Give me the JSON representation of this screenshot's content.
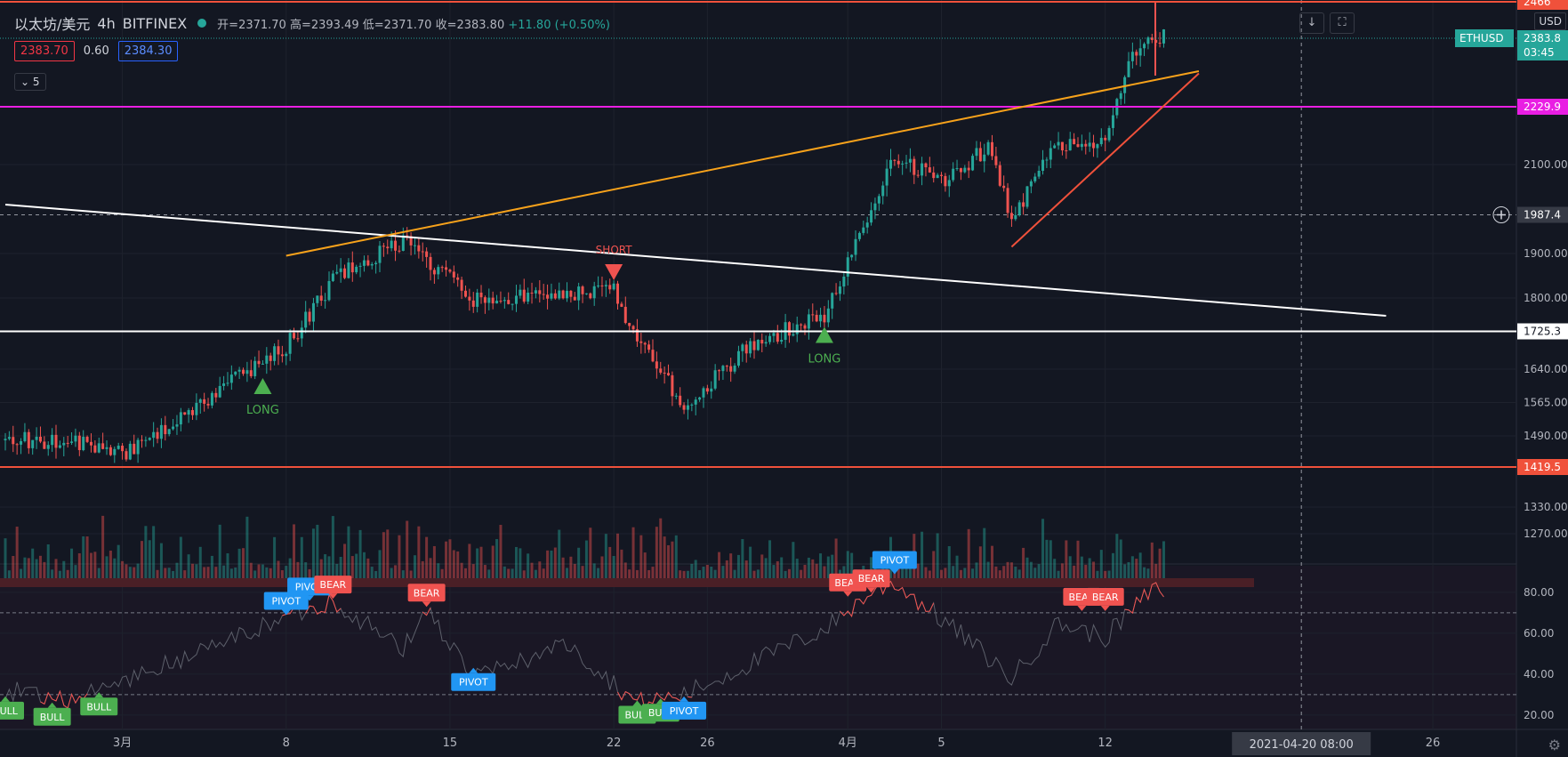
{
  "header": {
    "symbol": "以太坊/美元",
    "interval": "4h",
    "exchange": "BITFINEX",
    "open": "开=2371.70",
    "high": "高=2393.49",
    "low": "低=2371.70",
    "close": "收=2383.80",
    "change": "+11.80 (+0.50%)"
  },
  "trade": {
    "sell": "2383.70",
    "spread": "0.60",
    "buy": "2384.30"
  },
  "indicator_toggle": "5",
  "toolbar": {
    "download_icon": "arrow-down-icon",
    "fullscreen_icon": "fullscreen-icon",
    "currency": "USD"
  },
  "colors": {
    "bg": "#131722",
    "up": "#26a69a",
    "down": "#ef5350",
    "orange": "#f7a21b",
    "magenta": "#e91ee3",
    "red_line": "#f0513b",
    "bull": "#4caf50",
    "bear": "#f05350",
    "pivot": "#2196f3"
  },
  "chart_data": [
    {
      "type": "candlestick",
      "title": "",
      "x_ticks": [
        "3月",
        "8",
        "15",
        "22",
        "26",
        "4月",
        "5",
        "12",
        "26"
      ],
      "crosshair_time": "2021-04-20   08:00",
      "y_ticks": [
        "2100.00",
        "1900.00",
        "1800.00",
        "1640.00",
        "1565.00",
        "1490.00",
        "1330.00",
        "1270.00"
      ],
      "ylim": [
        1220,
        2470
      ],
      "price_labels": [
        {
          "text": "2466",
          "price": 2466,
          "color": "#f0513b"
        },
        {
          "text": "2383.8",
          "price": 2384,
          "color": "#26a69a"
        },
        {
          "text": "03:45",
          "price": 2352,
          "color": "#26a69a"
        },
        {
          "text": "2229.9",
          "price": 2230,
          "color": "#e91ee3"
        },
        {
          "text": "1987.4",
          "price": 1987,
          "color": "#363a45"
        },
        {
          "text": "1725.3",
          "price": 1725,
          "color": "#ffffff"
        },
        {
          "text": "1419.5",
          "price": 1420,
          "color": "#f0513b"
        }
      ],
      "symbol_tag": "ETHUSD",
      "key_points": [
        {
          "t": "2021-02-27",
          "price": 1480
        },
        {
          "t": "2021-03-01",
          "price": 1450
        },
        {
          "t": "2021-03-08",
          "price": 1690
        },
        {
          "t": "2021-03-10",
          "price": 1840
        },
        {
          "t": "2021-03-13",
          "price": 1930
        },
        {
          "t": "2021-03-16",
          "price": 1800
        },
        {
          "t": "2021-03-22",
          "price": 1820
        },
        {
          "t": "2021-03-23",
          "price": 1700
        },
        {
          "t": "2021-03-25",
          "price": 1560
        },
        {
          "t": "2021-03-28",
          "price": 1700
        },
        {
          "t": "2021-03-31",
          "price": 1760
        },
        {
          "t": "2021-04-01",
          "price": 1880
        },
        {
          "t": "2021-04-03",
          "price": 2120
        },
        {
          "t": "2021-04-05",
          "price": 2060
        },
        {
          "t": "2021-04-07",
          "price": 2140
        },
        {
          "t": "2021-04-08",
          "price": 1980
        },
        {
          "t": "2021-04-10",
          "price": 2150
        },
        {
          "t": "2021-04-12",
          "price": 2140
        },
        {
          "t": "2021-04-13",
          "price": 2330
        },
        {
          "t": "2021-04-14",
          "price": 2384
        }
      ],
      "horizontal_lines": [
        {
          "price": 2466,
          "color": "#f0513b"
        },
        {
          "price": 2230,
          "color": "#e91ee3"
        },
        {
          "price": 1725,
          "color": "#ffffff"
        },
        {
          "price": 1420,
          "color": "#f0513b"
        }
      ],
      "trend_lines": [
        {
          "from": [
            "2021-02-24",
            2010
          ],
          "to": [
            "2021-04-24",
            1760
          ],
          "color": "#ffffff"
        },
        {
          "from": [
            "2021-03-08",
            1895
          ],
          "to": [
            "2021-04-16",
            2310
          ],
          "color": "#f7a21b"
        },
        {
          "from": [
            "2021-04-08",
            1915
          ],
          "to": [
            "2021-04-16",
            2305
          ],
          "color": "#f0513b"
        }
      ],
      "signals": [
        {
          "label": "LONG",
          "t": "2021-03-07",
          "price": 1600,
          "dir": "up"
        },
        {
          "label": "SHORT",
          "t": "2021-03-22",
          "price": 1860,
          "dir": "down"
        },
        {
          "label": "LONG",
          "t": "2021-03-31",
          "price": 1715,
          "dir": "up"
        }
      ]
    },
    {
      "type": "line",
      "title": "",
      "y_ticks": [
        "80.00",
        "60.00",
        "40.00",
        "20.00"
      ],
      "ylim": [
        13,
        93
      ],
      "levels": [
        70,
        30
      ],
      "markers": [
        {
          "label": "BULL",
          "t": "2021-02-24",
          "value": 30
        },
        {
          "label": "BULL",
          "t": "2021-02-26",
          "value": 27
        },
        {
          "label": "BULL",
          "t": "2021-02-28",
          "value": 32
        },
        {
          "label": "PIVOT",
          "t": "2021-03-08",
          "value": 68
        },
        {
          "label": "PIVOT",
          "t": "2021-03-09",
          "value": 75
        },
        {
          "label": "BEAR",
          "t": "2021-03-10",
          "value": 76
        },
        {
          "label": "BEAR",
          "t": "2021-03-14",
          "value": 72
        },
        {
          "label": "PIVOT",
          "t": "2021-03-16",
          "value": 44
        },
        {
          "label": "BULL",
          "t": "2021-03-23",
          "value": 28
        },
        {
          "label": "BULL",
          "t": "2021-03-24",
          "value": 29
        },
        {
          "label": "PIVOT",
          "t": "2021-03-25",
          "value": 30
        },
        {
          "label": "BEAR",
          "t": "2021-04-01",
          "value": 77
        },
        {
          "label": "BEAR",
          "t": "2021-04-02",
          "value": 79
        },
        {
          "label": "PIVOT",
          "t": "2021-04-03",
          "value": 88
        },
        {
          "label": "BEAR",
          "t": "2021-04-11",
          "value": 70
        },
        {
          "label": "BEAR",
          "t": "2021-04-12",
          "value": 70
        }
      ],
      "key_points": [
        {
          "t": "2021-02-24",
          "value": 32
        },
        {
          "t": "2021-02-27",
          "value": 28
        },
        {
          "t": "2021-03-03",
          "value": 45
        },
        {
          "t": "2021-03-08",
          "value": 68
        },
        {
          "t": "2021-03-10",
          "value": 76
        },
        {
          "t": "2021-03-13",
          "value": 52
        },
        {
          "t": "2021-03-14",
          "value": 72
        },
        {
          "t": "2021-03-16",
          "value": 38
        },
        {
          "t": "2021-03-20",
          "value": 55
        },
        {
          "t": "2021-03-23",
          "value": 26
        },
        {
          "t": "2021-03-25",
          "value": 30
        },
        {
          "t": "2021-03-31",
          "value": 62
        },
        {
          "t": "2021-04-02",
          "value": 80
        },
        {
          "t": "2021-04-03",
          "value": 85
        },
        {
          "t": "2021-04-06",
          "value": 58
        },
        {
          "t": "2021-04-08",
          "value": 38
        },
        {
          "t": "2021-04-10",
          "value": 65
        },
        {
          "t": "2021-04-12",
          "value": 58
        },
        {
          "t": "2021-04-14",
          "value": 81
        }
      ]
    }
  ]
}
